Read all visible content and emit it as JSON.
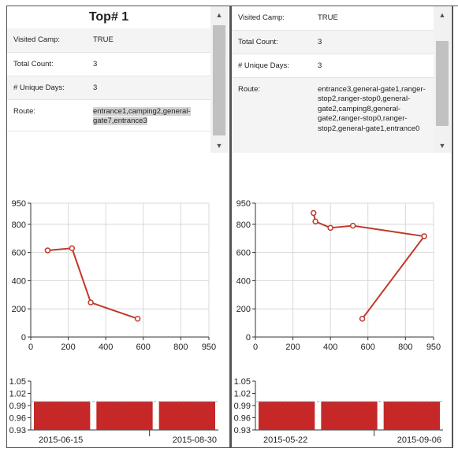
{
  "panels": [
    {
      "title": "Top# 1",
      "rows": [
        {
          "label": "Visited Camp:",
          "value": "TRUE"
        },
        {
          "label": "Total Count:",
          "value": "3"
        },
        {
          "label": "# Unique Days:",
          "value": "3"
        },
        {
          "label": "Route:",
          "value": "entrance1,camping2,general-gate7,entrance3"
        }
      ],
      "dates": [
        "2015-06-15",
        "2015-08-30"
      ]
    },
    {
      "title": "",
      "rows": [
        {
          "label": "Visited Camp:",
          "value": "TRUE"
        },
        {
          "label": "Total Count:",
          "value": "3"
        },
        {
          "label": "# Unique Days:",
          "value": "3"
        },
        {
          "label": "Route:",
          "value": "entrance3,general-gate1,ranger-stop2,ranger-stop0,general-gate2,camping8,general-gate2,ranger-stop0,ranger-stop2,general-gate1,entrance0"
        }
      ],
      "dates": [
        "2015-05-22",
        "2015-09-06"
      ]
    }
  ],
  "scroll_icons": {
    "up": "triangle-up-icon",
    "down": "triangle-down-icon"
  },
  "chart_data": [
    {
      "type": "line",
      "x": [
        90,
        220,
        320,
        570
      ],
      "y": [
        615,
        630,
        245,
        130
      ],
      "xlim": [
        0,
        950
      ],
      "ylim": [
        0,
        950
      ],
      "xticks": [
        0,
        200,
        400,
        600,
        800,
        950
      ],
      "yticks": [
        0,
        200,
        400,
        600,
        800,
        950
      ],
      "grid": true,
      "color": "#c0392b"
    },
    {
      "type": "line",
      "x": [
        310,
        320,
        400,
        520,
        900,
        570
      ],
      "y": [
        880,
        820,
        775,
        790,
        715,
        130
      ],
      "xlim": [
        0,
        950
      ],
      "ylim": [
        0,
        950
      ],
      "xticks": [
        0,
        200,
        400,
        600,
        800,
        950
      ],
      "yticks": [
        0,
        200,
        400,
        600,
        800,
        950
      ],
      "grid": true,
      "color": "#c0392b"
    },
    {
      "type": "bar",
      "values": [
        1,
        1,
        1
      ],
      "ylim": [
        0.93,
        1.05
      ],
      "yticks": [
        0.93,
        0.96,
        0.99,
        1.02,
        1.05
      ],
      "reference_line": 1,
      "color": "#c62828"
    },
    {
      "type": "bar",
      "values": [
        1,
        1,
        1
      ],
      "ylim": [
        0.93,
        1.05
      ],
      "yticks": [
        0.93,
        0.96,
        0.99,
        1.02,
        1.05
      ],
      "reference_line": 1,
      "color": "#c62828"
    }
  ]
}
